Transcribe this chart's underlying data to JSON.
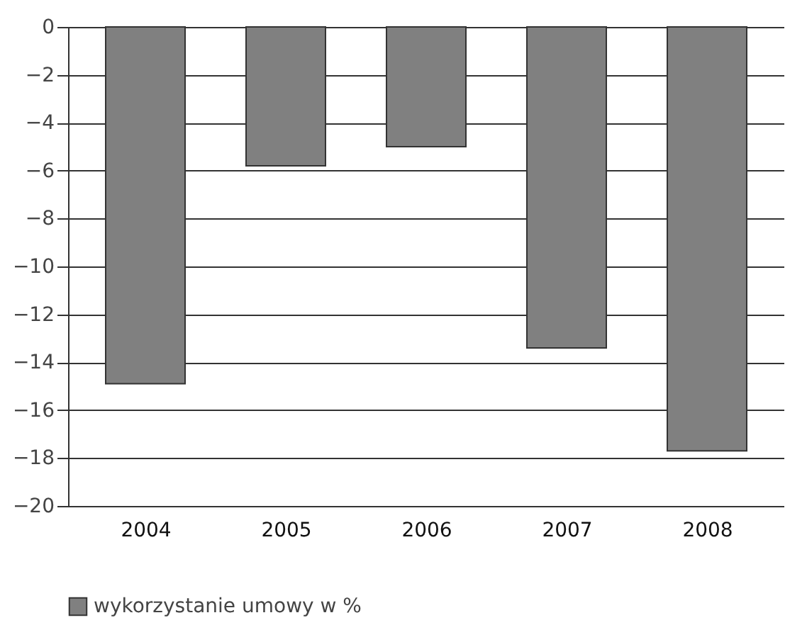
{
  "chart_data": {
    "type": "bar",
    "categories": [
      "2004",
      "2005",
      "2006",
      "2007",
      "2008"
    ],
    "series": [
      {
        "name": "wykorzystanie umowy w %",
        "color": "#808080",
        "values": [
          -14.9,
          -5.8,
          -5.0,
          -13.4,
          -17.7
        ]
      }
    ],
    "ylim": [
      -20,
      0
    ],
    "yticks": [
      -20,
      -18,
      -16,
      -14,
      -12,
      -10,
      -8,
      -6,
      -4,
      -2,
      0
    ],
    "grid": "y",
    "legend": "bottom"
  }
}
